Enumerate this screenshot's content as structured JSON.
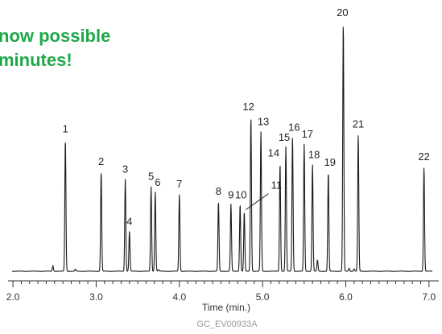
{
  "headline": {
    "line1": "now possible",
    "line2": "minutes!"
  },
  "chart_data": {
    "type": "line",
    "xlabel": "Time (min.)",
    "ylabel": "",
    "xlim": [
      1.97,
      7.05
    ],
    "ylim": [
      0,
      100
    ],
    "x_ticks": [
      2.0,
      3.0,
      4.0,
      5.0,
      6.0,
      7.0
    ],
    "x_tick_labels": [
      "2.0",
      "3.0",
      "4.0",
      "5.0",
      "6.0",
      "7.0"
    ],
    "grid": false,
    "figure_code": "GC_EV00933A",
    "peaks": [
      {
        "label": "1",
        "x": 2.63,
        "y": 53
      },
      {
        "label": "2",
        "x": 3.06,
        "y": 40
      },
      {
        "label": "3",
        "x": 3.35,
        "y": 37
      },
      {
        "label": "4",
        "x": 3.4,
        "y": 16
      },
      {
        "label": "5",
        "x": 3.66,
        "y": 34
      },
      {
        "label": "6",
        "x": 3.71,
        "y": 32
      },
      {
        "label": "7",
        "x": 4.0,
        "y": 31
      },
      {
        "label": "8",
        "x": 4.47,
        "y": 28
      },
      {
        "label": "9",
        "x": 4.62,
        "y": 27
      },
      {
        "label": "10",
        "x": 4.73,
        "y": 27
      },
      {
        "label": "11",
        "x": 4.78,
        "y": 24
      },
      {
        "label": "12",
        "x": 4.86,
        "y": 62
      },
      {
        "label": "13",
        "x": 4.98,
        "y": 56
      },
      {
        "label": "14",
        "x": 5.21,
        "y": 43
      },
      {
        "label": "15",
        "x": 5.28,
        "y": 50
      },
      {
        "label": "16",
        "x": 5.36,
        "y": 54
      },
      {
        "label": "17",
        "x": 5.5,
        "y": 51
      },
      {
        "label": "18",
        "x": 5.6,
        "y": 43
      },
      {
        "label": "19",
        "x": 5.79,
        "y": 40
      },
      {
        "label": "20",
        "x": 5.97,
        "y": 100
      },
      {
        "label": "21",
        "x": 6.15,
        "y": 55
      },
      {
        "label": "22",
        "x": 6.94,
        "y": 42
      }
    ],
    "minor_peaks": [
      {
        "x": 2.48,
        "y": 2.2
      },
      {
        "x": 2.75,
        "y": 0.8
      },
      {
        "x": 3.75,
        "y": 0.6
      },
      {
        "x": 5.66,
        "y": 4.5
      },
      {
        "x": 6.04,
        "y": 1.2
      },
      {
        "x": 6.1,
        "y": 1.0
      }
    ]
  }
}
